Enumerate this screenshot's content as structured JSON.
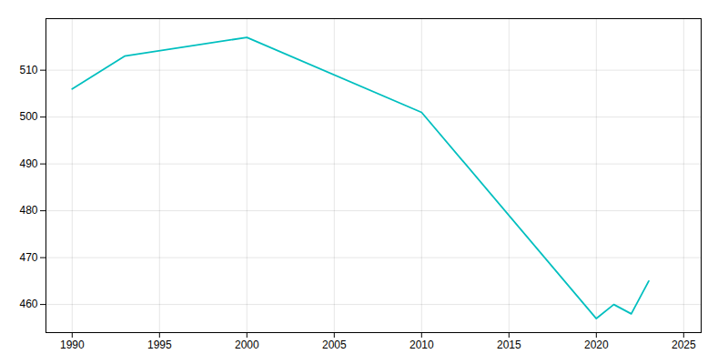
{
  "chart_data": {
    "type": "line",
    "x": [
      1990,
      1993,
      2000,
      2010,
      2020,
      2021,
      2022,
      2023
    ],
    "values": [
      506,
      513,
      517,
      501,
      457,
      460,
      458,
      465
    ],
    "color": "#00BFBF",
    "xlim": [
      1988.5,
      2026
    ],
    "ylim": [
      454,
      521
    ],
    "xticks": [
      1990,
      1995,
      2000,
      2005,
      2010,
      2015,
      2020,
      2025
    ],
    "yticks": [
      460,
      470,
      480,
      490,
      500,
      510
    ],
    "grid": true
  }
}
